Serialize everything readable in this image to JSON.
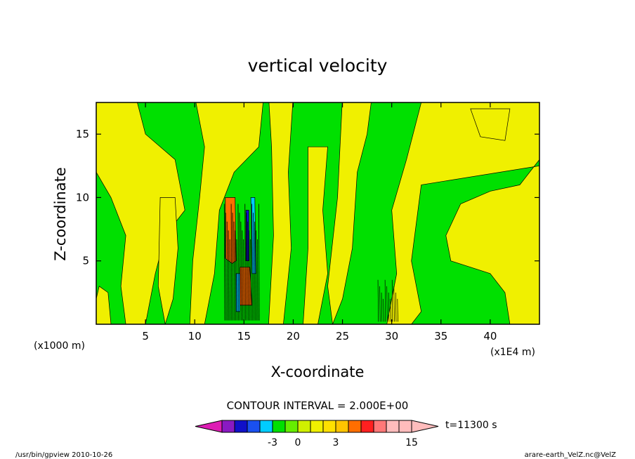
{
  "chart_data": {
    "type": "heatmap",
    "title": "vertical velocity",
    "xlabel": "X-coordinate",
    "ylabel": "Z-coordinate",
    "x_axis_unit_left": "(x1000 m)",
    "x_axis_unit_right": "(x1E4 m)",
    "xlim": [
      0,
      45
    ],
    "ylim": [
      0,
      17.5
    ],
    "x_ticks": [
      "5",
      "10",
      "15",
      "20",
      "25",
      "30",
      "35",
      "40"
    ],
    "x_tick_values": [
      5,
      10,
      15,
      20,
      25,
      30,
      35,
      40
    ],
    "y_ticks": [
      "5",
      "10",
      "15"
    ],
    "y_tick_values": [
      5,
      10,
      15
    ],
    "contour_interval": "CONTOUR INTERVAL = 2.000E+00",
    "time_label": "t=11300 s",
    "colorbar_labels": [
      "-3",
      "0",
      "3",
      "15"
    ],
    "colorbar_label_values": [
      -3,
      0,
      3,
      15
    ],
    "colorbar_levels": [
      -11,
      -9,
      -7,
      -5,
      -3,
      -1,
      0,
      1,
      2,
      3,
      5,
      7,
      9,
      11,
      13,
      15
    ],
    "colorbar_colors": [
      "#dd1cb4",
      "#8a1ac2",
      "#1010c8",
      "#1a50f0",
      "#00ccff",
      "#00e000",
      "#66ee00",
      "#d0f000",
      "#f0f000",
      "#ffe000",
      "#ffc400",
      "#ff6e00",
      "#ff2020",
      "#ff7878",
      "#ffbcbc"
    ],
    "regions": {
      "background": "#00e000",
      "positive_weak": "#f0f000",
      "positive_moderate": "#ff6e00",
      "negative_weak": "#00ccff",
      "negative_moderate": "#1010c8"
    }
  },
  "footer": {
    "left": "/usr/bin/gpview   2010-10-26",
    "right": "arare-earth_VelZ.nc@VelZ"
  }
}
